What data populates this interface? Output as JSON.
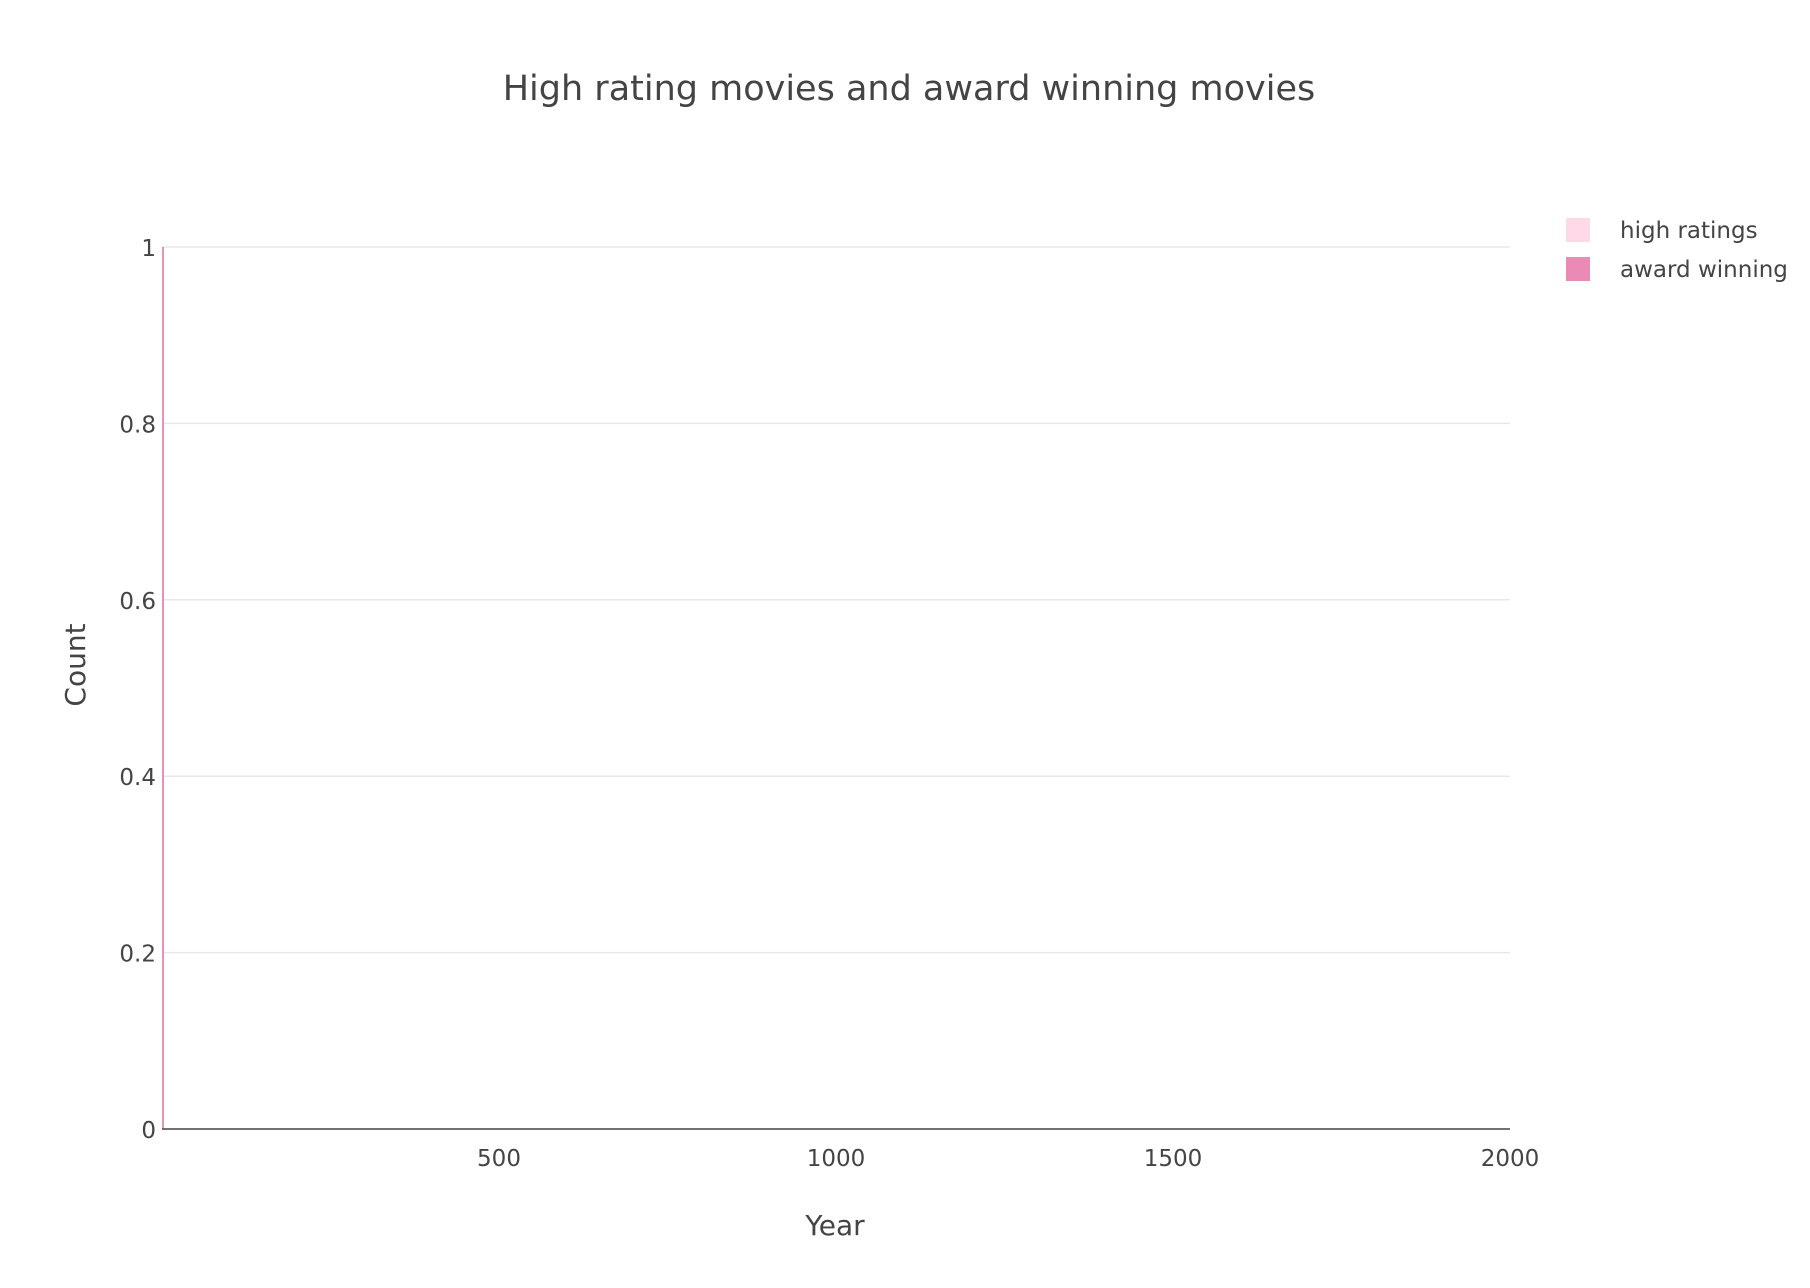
{
  "chart_data": {
    "type": "bar",
    "title": "High rating movies and award winning movies",
    "xlabel": "Year",
    "ylabel": "Count",
    "xlim": [
      0,
      2000
    ],
    "ylim": [
      0,
      1
    ],
    "x_ticks": [
      {
        "value": 500,
        "label": "500"
      },
      {
        "value": 1000,
        "label": "1000"
      },
      {
        "value": 1500,
        "label": "1500"
      },
      {
        "value": 2000,
        "label": "2000"
      }
    ],
    "y_ticks": [
      {
        "value": 0,
        "label": "0"
      },
      {
        "value": 0.2,
        "label": "0.2"
      },
      {
        "value": 0.4,
        "label": "0.4"
      },
      {
        "value": 0.6,
        "label": "0.6"
      },
      {
        "value": 0.8,
        "label": "0.8"
      },
      {
        "value": 1,
        "label": "1"
      }
    ],
    "grid": true,
    "legend_position": "top-right",
    "series": [
      {
        "name": "high ratings",
        "color": "#ffd9e8",
        "x": [],
        "values": []
      },
      {
        "name": "award winning",
        "color": "#e98bb5",
        "x": [
          0
        ],
        "values": [
          1
        ]
      }
    ]
  }
}
